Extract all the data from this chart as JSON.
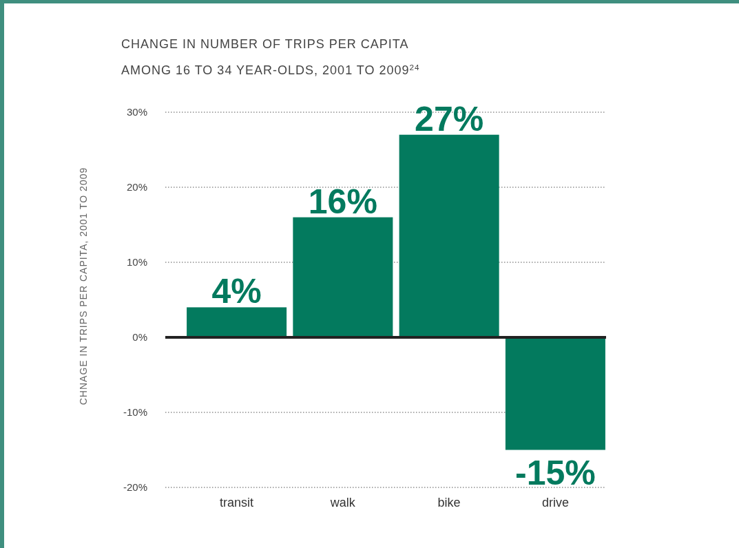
{
  "chart_data": {
    "type": "bar",
    "title": "CHANGE IN NUMBER OF TRIPS PER CAPITA",
    "subtitle": "AMONG 16 TO 34 YEAR-OLDS, 2001 TO 2009$^{24}$",
    "ylabel": "CHNAGE IN TRIPS PER CAPITA, 2001 TO 2009",
    "categories": [
      "transit",
      "walk",
      "bike",
      "drive"
    ],
    "values": [
      4,
      16,
      27,
      -15
    ],
    "color": "#037a5e",
    "ylim": [
      -20,
      30
    ],
    "yticks": [
      {
        "value": -20,
        "label": "-20%"
      },
      {
        "value": -10,
        "label": "-10%"
      },
      {
        "value": 0,
        "label": "0%"
      },
      {
        "value": 10,
        "label": "10%"
      },
      {
        "value": 20,
        "label": "20%"
      },
      {
        "value": 30,
        "label": "30%"
      }
    ],
    "grid": "y",
    "value_labels": [
      "4%",
      "16%",
      "27%",
      "-15%"
    ]
  }
}
